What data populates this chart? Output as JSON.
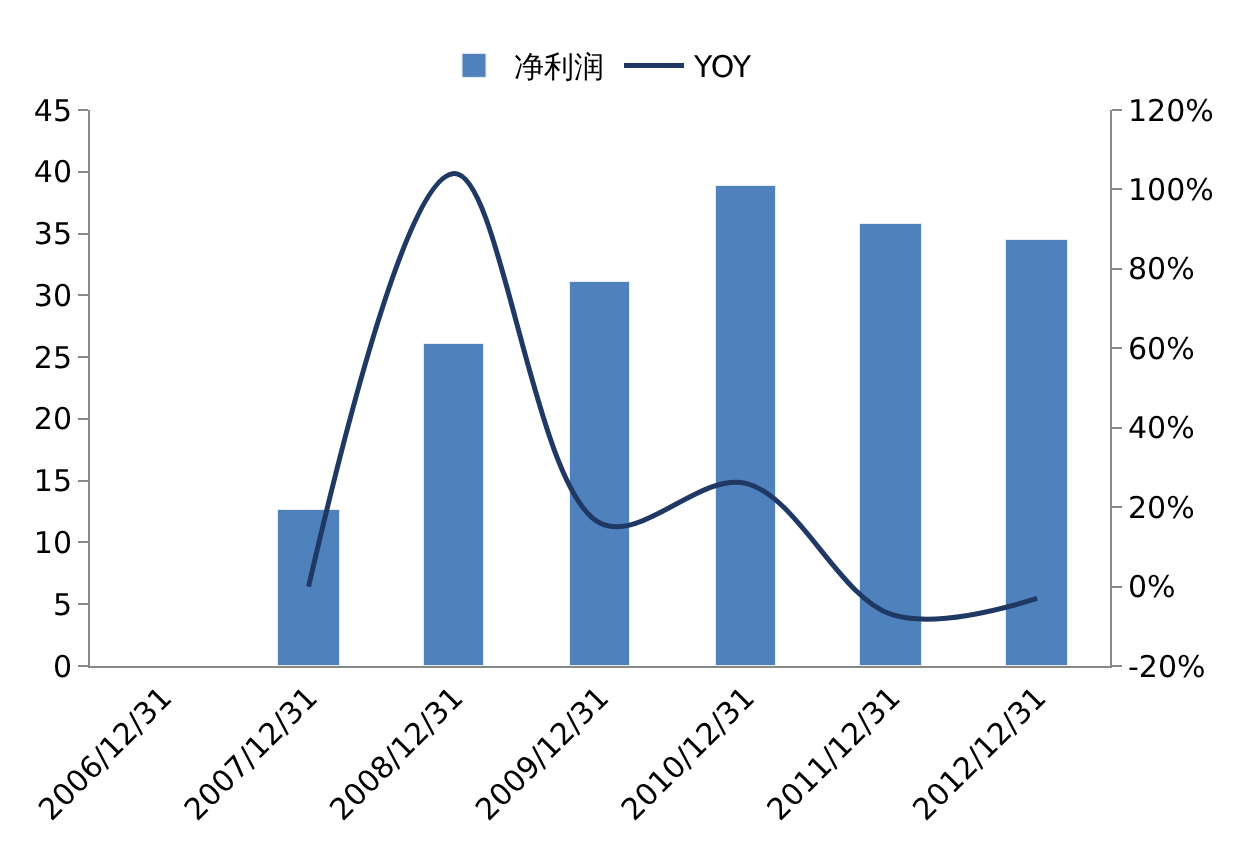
{
  "chart_data": {
    "type": "bar",
    "categories": [
      "2006/12/31",
      "2007/12/31",
      "2008/12/31",
      "2009/12/31",
      "2010/12/31",
      "2011/12/31",
      "2012/12/31"
    ],
    "series": [
      {
        "name": "净利润",
        "color": "#4f81bd",
        "values": [
          null,
          12.7,
          26.0,
          31.0,
          38.8,
          35.7,
          34.5
        ]
      },
      {
        "name": "YOY",
        "type": "line",
        "axis": "y2",
        "color": "#1f3864",
        "values": [
          null,
          0,
          104,
          16,
          26,
          -7,
          -3
        ]
      }
    ],
    "ylim": [
      0,
      45
    ],
    "yticks": [
      0,
      5,
      10,
      15,
      20,
      25,
      30,
      35,
      40,
      45
    ],
    "y2lim": [
      -20,
      120
    ],
    "y2ticks": [
      {
        "value": -20,
        "label": "-20%"
      },
      {
        "value": 0,
        "label": "0%"
      },
      {
        "value": 20,
        "label": "20%"
      },
      {
        "value": 40,
        "label": "40%"
      },
      {
        "value": 60,
        "label": "60%"
      },
      {
        "value": 80,
        "label": "80%"
      },
      {
        "value": 100,
        "label": "100%"
      },
      {
        "value": 120,
        "label": "120%"
      }
    ],
    "legend": "top",
    "grid": false,
    "marker": "none",
    "line_style": "solid"
  }
}
